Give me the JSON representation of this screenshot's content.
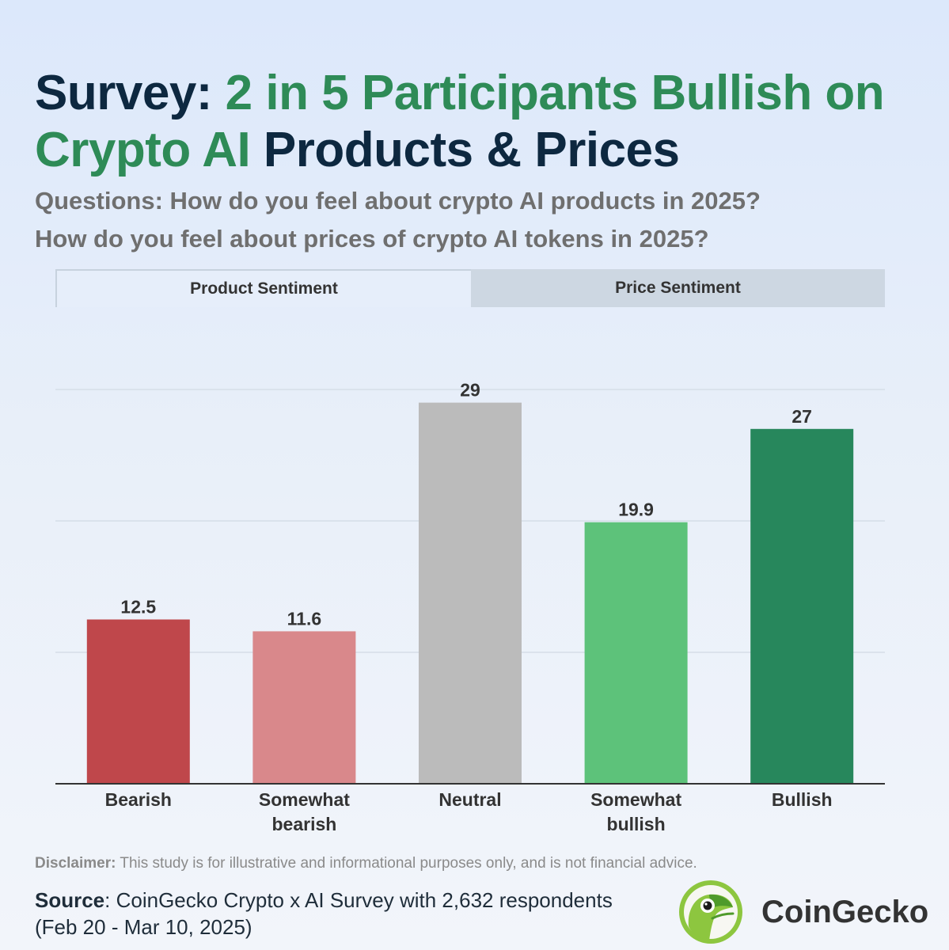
{
  "header": {
    "title_part1": "Survey: ",
    "title_part2": "2 in 5 Participants Bullish on Crypto AI",
    "title_part3": " Products & Prices",
    "question1": "Questions: How do you feel about crypto AI products in 2025?",
    "question2": "How do you feel about prices of crypto AI tokens in 2025?"
  },
  "tabs": [
    {
      "label": "Product Sentiment",
      "active": true
    },
    {
      "label": "Price Sentiment",
      "active": false
    }
  ],
  "chart_data": {
    "type": "bar",
    "categories": [
      "Bearish",
      "Somewhat bearish",
      "Neutral",
      "Somewhat bullish",
      "Bullish"
    ],
    "values": [
      12.5,
      11.6,
      29,
      19.9,
      27
    ],
    "value_labels": [
      "12.5",
      "11.6",
      "29",
      "19.9",
      "27"
    ],
    "colors": [
      "#bf474b",
      "#d9888b",
      "#bbbbbb",
      "#5dc27a",
      "#27875c"
    ],
    "ylim": [
      0,
      30
    ],
    "gridlines": [
      10,
      20,
      30
    ],
    "title": "",
    "xlabel": "",
    "ylabel": ""
  },
  "footer": {
    "disclaimer_label": "Disclaimer:",
    "disclaimer_text": " This study is for illustrative and informational purposes only, and is not financial advice.",
    "source_label": "Source",
    "source_text": ": CoinGecko Crypto x AI Survey with 2,632 respondents (Feb 20 - Mar 10, 2025)",
    "brand_name": "CoinGecko",
    "brand_icon": "gecko-logo-icon"
  }
}
